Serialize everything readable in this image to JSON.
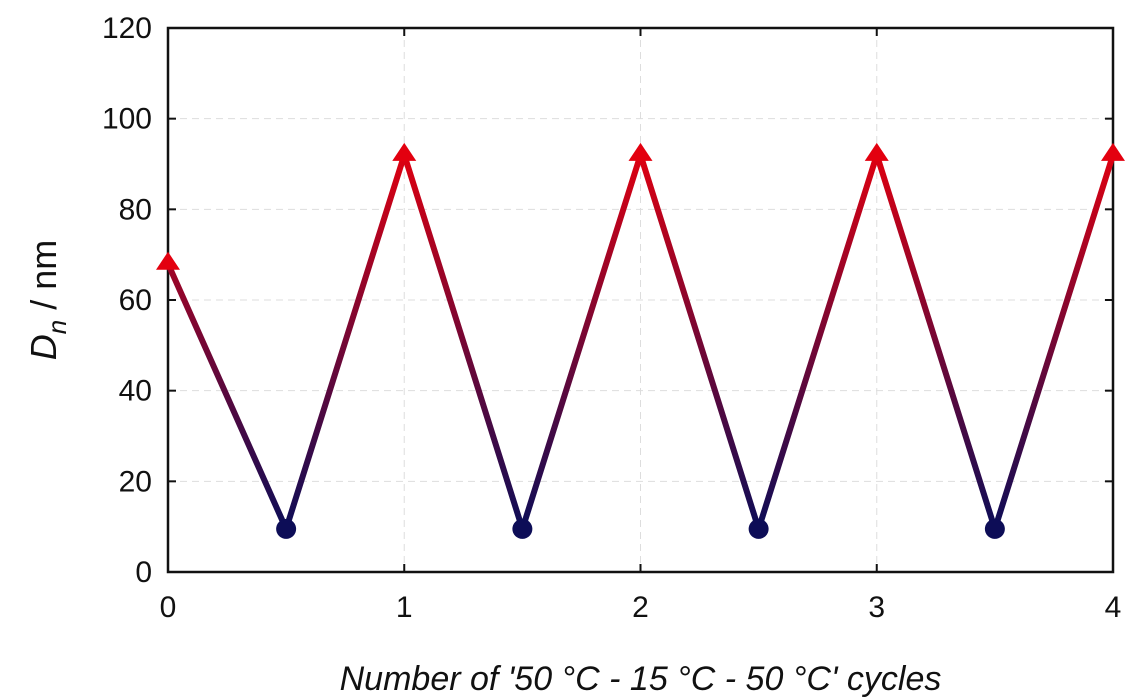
{
  "chart_data": {
    "type": "line",
    "title": "",
    "xlabel": "Number of '50 °C - 15 °C - 50 °C' cycles",
    "ylabel_main": "D",
    "ylabel_sub": "n",
    "ylabel_rest": " / nm",
    "xlim": [
      0,
      4
    ],
    "ylim": [
      0,
      120
    ],
    "xticks": [
      0,
      1,
      2,
      3,
      4
    ],
    "xtick_labels": [
      "0",
      "1",
      "2",
      "3",
      "4"
    ],
    "yticks": [
      0,
      20,
      40,
      60,
      80,
      100,
      120
    ],
    "ytick_labels": [
      "0",
      "20",
      "40",
      "60",
      "80",
      "100",
      "120"
    ],
    "grid": true,
    "colors": {
      "high": "#e3000f",
      "low": "#0d0d57",
      "axis": "#111111",
      "grid": "#dddddd"
    },
    "series": [
      {
        "x": [
          0,
          0.5,
          1,
          1.5,
          2,
          2.5,
          3,
          3.5,
          4
        ],
        "y": [
          68,
          9.5,
          92,
          9.5,
          92,
          9.5,
          92,
          9.5,
          92
        ]
      }
    ]
  }
}
